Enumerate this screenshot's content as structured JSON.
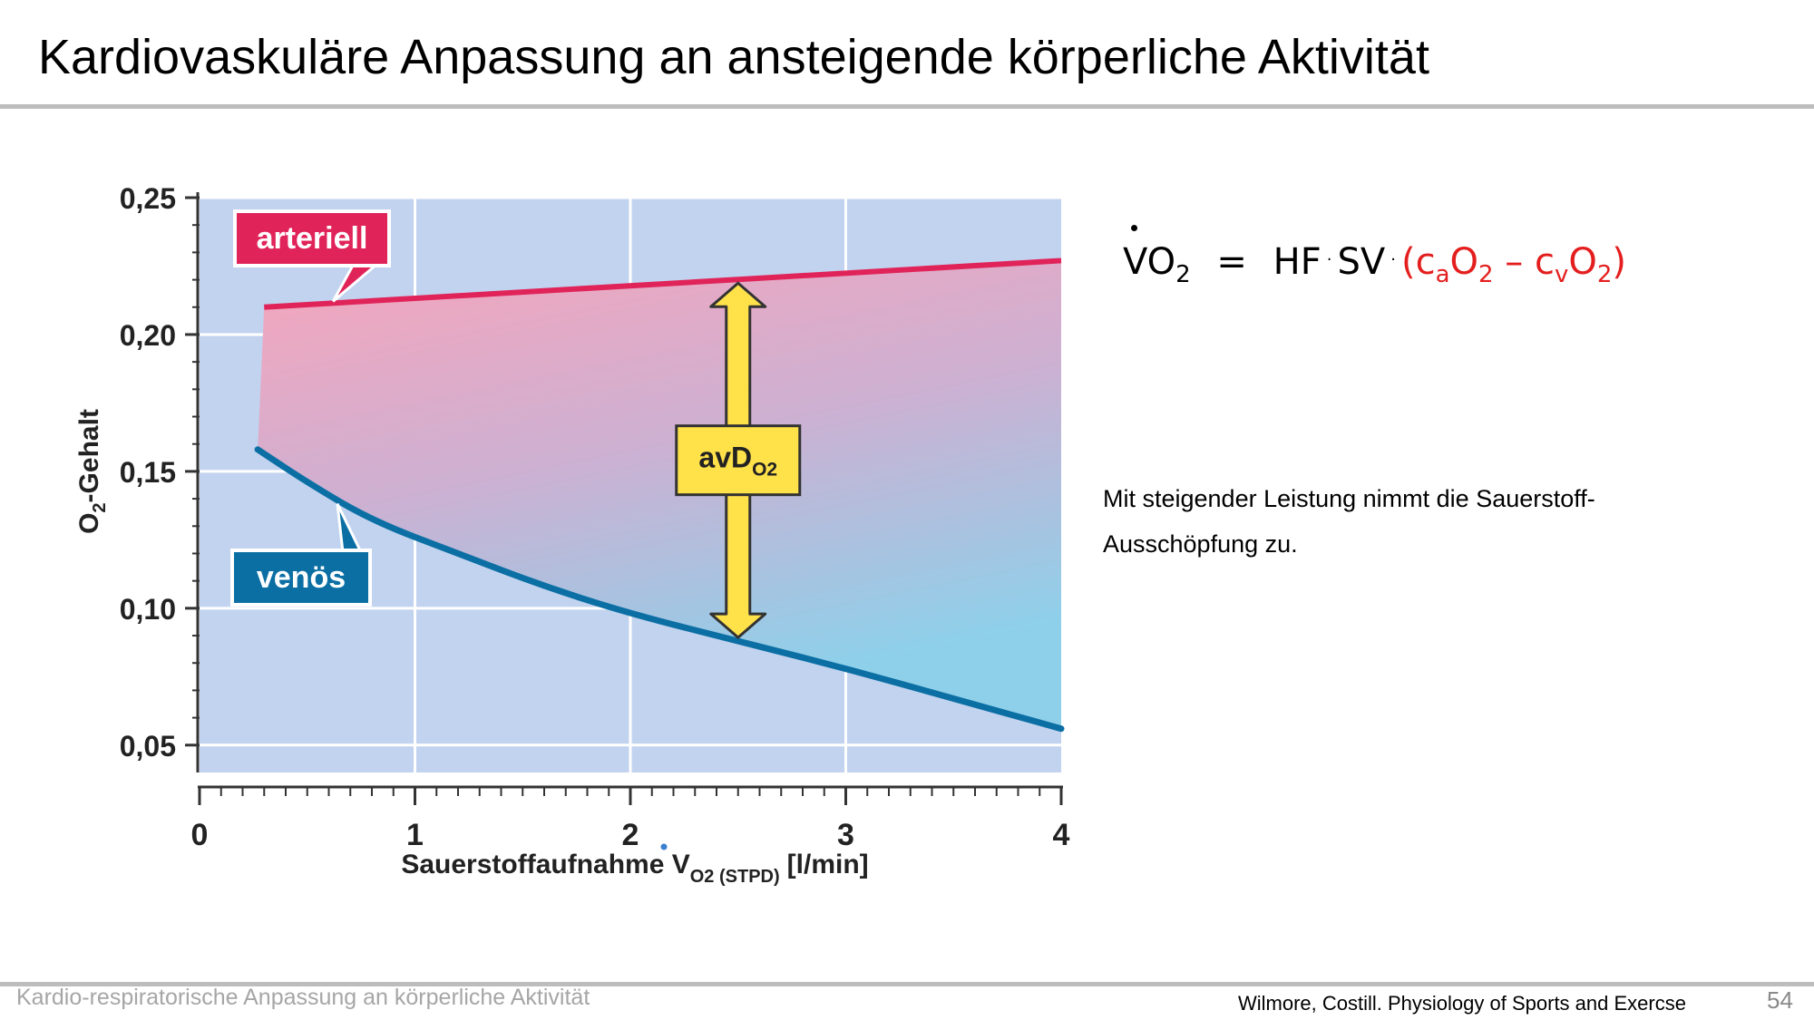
{
  "slide": {
    "title": "Kardiovaskuläre Anpassung an ansteigende körperliche Aktivität",
    "body_text": "Mit steigender Leistung nimmt die Sauerstoff-Ausschöpfung zu.",
    "footer_left": "Kardio-respiratorische Anpassung an körperliche Aktivität",
    "citation": "Wilmore, Costill. Physiology of Sports and Exercse",
    "page_number": "54"
  },
  "formula": {
    "lhs": "VO",
    "lhs_sub": "2",
    "equals": "=",
    "hf": "HF",
    "dot": "·",
    "sv": "SV",
    "open": "(c",
    "a_sub": "a",
    "o_a": "O",
    "o_a_sub": "2",
    "minus": " – c",
    "v_sub": "v",
    "o_v": "O",
    "o_v_sub": "2",
    "close": ")",
    "highlight_color": "#e41e1e"
  },
  "chart_data": {
    "type": "line",
    "xlabel_main": "Sauerstoffaufnahme V",
    "xlabel_sub": "O2 (STPD)",
    "xlabel_unit": "[l/min]",
    "ylabel": "O",
    "ylabel_sub": "2",
    "ylabel_rest": "-Gehalt",
    "x_ticks": [
      "0",
      "1",
      "2",
      "3",
      "4"
    ],
    "y_ticks": [
      "0,05",
      "0,10",
      "0,15",
      "0,20",
      "0,25"
    ],
    "xlim": [
      0,
      4
    ],
    "ylim": [
      0.04,
      0.25
    ],
    "grid": true,
    "series": [
      {
        "name": "arteriell",
        "color": "#e0245a",
        "x": [
          0.3,
          4.0
        ],
        "y": [
          0.21,
          0.227
        ]
      },
      {
        "name": "venös",
        "color": "#0b6fa4",
        "x": [
          0.27,
          0.5,
          0.8,
          1.2,
          1.6,
          2.0,
          2.5,
          3.0,
          3.5,
          4.0
        ],
        "y": [
          0.158,
          0.146,
          0.132,
          0.12,
          0.108,
          0.098,
          0.088,
          0.078,
          0.067,
          0.056
        ]
      }
    ],
    "annotation": {
      "label": "avD",
      "label_sub": "O2",
      "x": 2.5,
      "color": "#ffe14a"
    },
    "colors": {
      "plot_background": "#c2d3ef",
      "arterial_fill": "#f7a5bb",
      "venous_fill": "#8ed0ea"
    }
  }
}
